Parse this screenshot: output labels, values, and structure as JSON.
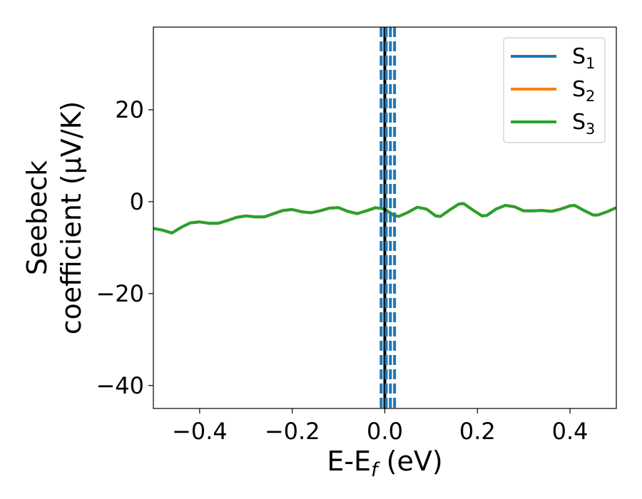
{
  "chart_data": {
    "type": "line",
    "xlabel": {
      "base": "E-E",
      "sub": "f",
      "rest": " (eV)"
    },
    "ylabel": {
      "line1": "Seebeck",
      "line2": "coefficient  (μV/K)"
    },
    "xlim": [
      -0.5,
      0.5
    ],
    "ylim": [
      -45,
      38
    ],
    "x_ticks": [
      {
        "value": -0.4,
        "label": "−0.4"
      },
      {
        "value": -0.2,
        "label": "−0.2"
      },
      {
        "value": 0.0,
        "label": "0.0"
      },
      {
        "value": 0.2,
        "label": "0.2"
      },
      {
        "value": 0.4,
        "label": "0.4"
      }
    ],
    "y_ticks": [
      {
        "value": 20,
        "label": "20"
      },
      {
        "value": 0,
        "label": "0"
      },
      {
        "value": -20,
        "label": "−20"
      },
      {
        "value": -40,
        "label": "−40"
      }
    ],
    "grid": false,
    "legend_position": "top-right",
    "series": [
      {
        "name": "S",
        "sub": "1",
        "color": "#1f77b4",
        "values_ref": "S3"
      },
      {
        "name": "S",
        "sub": "2",
        "color": "#ff7f0e",
        "values_ref": "S3"
      },
      {
        "name": "S",
        "sub": "3",
        "color": "#2ca02c",
        "points": [
          [
            -0.5,
            -5.8
          ],
          [
            -0.48,
            -6.2
          ],
          [
            -0.46,
            -6.8
          ],
          [
            -0.44,
            -5.6
          ],
          [
            -0.42,
            -4.6
          ],
          [
            -0.4,
            -4.4
          ],
          [
            -0.38,
            -4.7
          ],
          [
            -0.36,
            -4.7
          ],
          [
            -0.34,
            -4.1
          ],
          [
            -0.32,
            -3.4
          ],
          [
            -0.3,
            -3.1
          ],
          [
            -0.28,
            -3.3
          ],
          [
            -0.26,
            -3.3
          ],
          [
            -0.24,
            -2.6
          ],
          [
            -0.22,
            -1.9
          ],
          [
            -0.2,
            -1.7
          ],
          [
            -0.18,
            -2.2
          ],
          [
            -0.16,
            -2.4
          ],
          [
            -0.14,
            -2.0
          ],
          [
            -0.12,
            -1.4
          ],
          [
            -0.1,
            -1.3
          ],
          [
            -0.08,
            -2.1
          ],
          [
            -0.06,
            -2.6
          ],
          [
            -0.04,
            -2.0
          ],
          [
            -0.02,
            -1.3
          ],
          [
            0.0,
            -1.6
          ],
          [
            0.02,
            -3.0
          ],
          [
            0.03,
            -3.2
          ],
          [
            0.05,
            -2.3
          ],
          [
            0.07,
            -1.2
          ],
          [
            0.09,
            -1.6
          ],
          [
            0.11,
            -3.1
          ],
          [
            0.12,
            -3.2
          ],
          [
            0.14,
            -1.8
          ],
          [
            0.16,
            -0.5
          ],
          [
            0.17,
            -0.4
          ],
          [
            0.19,
            -1.8
          ],
          [
            0.21,
            -3.1
          ],
          [
            0.22,
            -3.0
          ],
          [
            0.24,
            -1.6
          ],
          [
            0.26,
            -0.8
          ],
          [
            0.28,
            -1.1
          ],
          [
            0.3,
            -2.0
          ],
          [
            0.32,
            -2.0
          ],
          [
            0.34,
            -1.9
          ],
          [
            0.36,
            -2.1
          ],
          [
            0.38,
            -1.6
          ],
          [
            0.4,
            -0.9
          ],
          [
            0.41,
            -0.8
          ],
          [
            0.43,
            -1.9
          ],
          [
            0.45,
            -2.9
          ],
          [
            0.46,
            -2.9
          ],
          [
            0.48,
            -2.2
          ],
          [
            0.5,
            -1.3
          ]
        ]
      }
    ],
    "vlines": [
      {
        "x": 0.0,
        "style": "solid",
        "color": "#000000"
      },
      {
        "x": -0.008,
        "style": "dashed",
        "color": "#1f77b4"
      },
      {
        "x": 0.003,
        "style": "dashed",
        "color": "#1f77b4"
      },
      {
        "x": 0.012,
        "style": "dashed",
        "color": "#1f77b4"
      },
      {
        "x": 0.021,
        "style": "dashed",
        "color": "#1f77b4"
      }
    ]
  }
}
